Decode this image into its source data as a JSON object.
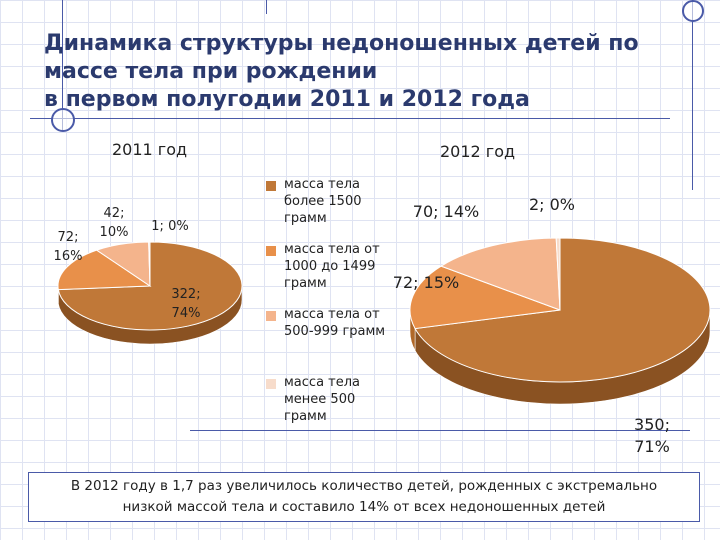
{
  "slide": {
    "title_lines": [
      "Динамика структуры недоношенных детей по",
      "массе тела при рождении",
      "в первом полугодии 2011 и 2012 года"
    ],
    "caption_lines": [
      "В 2012 году  в 1,7 раз увеличилось количество детей, рожденных с экстремально",
      "низкой массой тела и составило 14% от всех недоношенных детей"
    ]
  },
  "chart_data": [
    {
      "type": "pie",
      "title": "2011 год",
      "categories": [
        "масса тела более 1500 грамм",
        "масса тела от 1000 до 1499 грамм",
        "масса тела от 500-999 грамм",
        "масса тела менее 500 грамм"
      ],
      "values": [
        322,
        72,
        42,
        1
      ],
      "percents": [
        74,
        16,
        10,
        0
      ],
      "data_labels": [
        [
          "322;",
          "74%"
        ],
        [
          "72;",
          "16%"
        ],
        [
          "42;",
          "10%"
        ],
        [
          "1; 0%"
        ]
      ]
    },
    {
      "type": "pie",
      "title": "2012 год",
      "categories": [
        "масса тела более 1500 грамм",
        "масса тела от 1000 до 1499 грамм",
        "масса тела от 500-999 грамм",
        "масса тела менее 500 грамм"
      ],
      "values": [
        350,
        72,
        70,
        2
      ],
      "percents": [
        71,
        15,
        14,
        0
      ],
      "data_labels": [
        [
          "350;",
          "71%"
        ],
        [
          "72; 15%"
        ],
        [
          "70; 14%"
        ],
        [
          "2; 0%"
        ]
      ]
    }
  ],
  "legend": {
    "position": "center",
    "items": [
      {
        "lines": [
          "масса тела",
          "более 1500",
          "грамм"
        ],
        "color": "#c07838"
      },
      {
        "lines": [
          "масса тела от",
          "1000 до 1499",
          "грамм"
        ],
        "color": "#e8904a"
      },
      {
        "lines": [
          "масса тела от",
          "500-999 грамм"
        ],
        "color": "#f4b48c"
      },
      {
        "lines": [
          "масса тела",
          "менее 500",
          "грамм"
        ],
        "color": "#f7dccb"
      }
    ]
  },
  "colors": {
    "slices": [
      "#c07838",
      "#e8904a",
      "#f4b48c",
      "#f7dccb"
    ],
    "slices_dark": [
      "#8a5222",
      "#b06828",
      "#c98a62",
      "#cfae9a"
    ]
  }
}
